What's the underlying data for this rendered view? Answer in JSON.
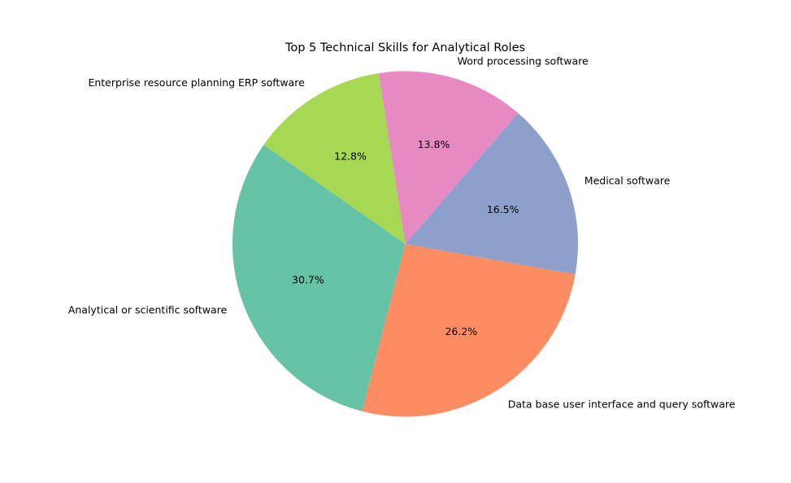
{
  "chart_data": {
    "type": "pie",
    "title": "Top 5 Technical Skills for Analytical Roles",
    "start_angle_deg": 145,
    "direction": "counterclockwise",
    "slices": [
      {
        "label": "Analytical or scientific software",
        "value": 30.7,
        "pct_label": "30.7%",
        "color": "#66c2a5"
      },
      {
        "label": "Data base user interface and query software",
        "value": 26.2,
        "pct_label": "26.2%",
        "color": "#fc8d62"
      },
      {
        "label": "Medical software",
        "value": 16.5,
        "pct_label": "16.5%",
        "color": "#8da0cb"
      },
      {
        "label": "Word processing software",
        "value": 13.8,
        "pct_label": "13.8%",
        "color": "#e78ac3"
      },
      {
        "label": "Enterprise resource planning ERP software",
        "value": 12.8,
        "pct_label": "12.8%",
        "color": "#a6d854"
      }
    ]
  }
}
